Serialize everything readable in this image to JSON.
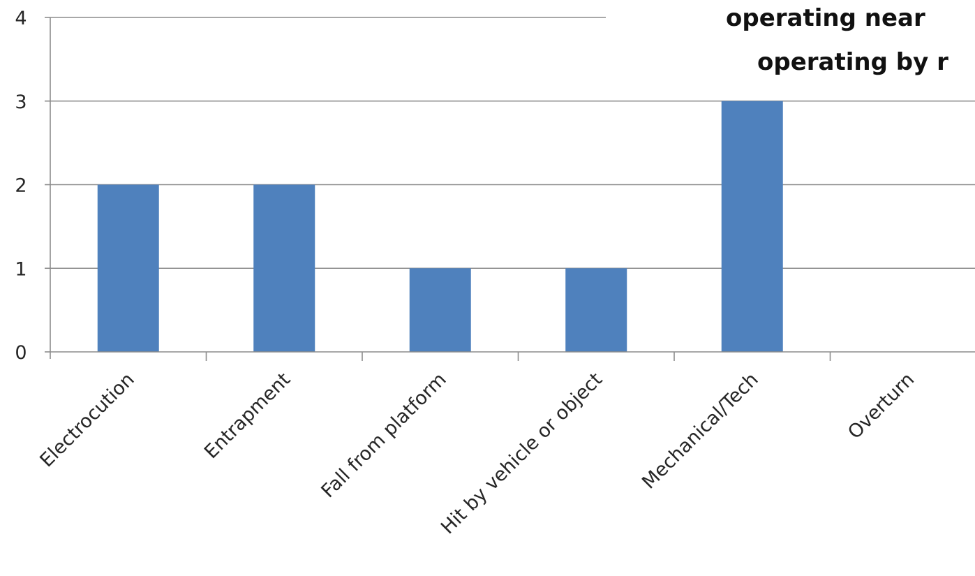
{
  "overlay_text": {
    "line1": "operating near",
    "line2": "operating by r"
  },
  "chart_data": {
    "type": "bar",
    "categories": [
      "Electrocution",
      "Entrapment",
      "Fall from platform",
      "Hit by vehicle or object",
      "Mechanical/Tech",
      "Overturn"
    ],
    "values": [
      2,
      2,
      1,
      1,
      3,
      0
    ],
    "ylim": [
      0,
      4
    ],
    "yticks": [
      0,
      1,
      2,
      3,
      4
    ],
    "grid": true,
    "bar_color": "#4f81bd"
  }
}
